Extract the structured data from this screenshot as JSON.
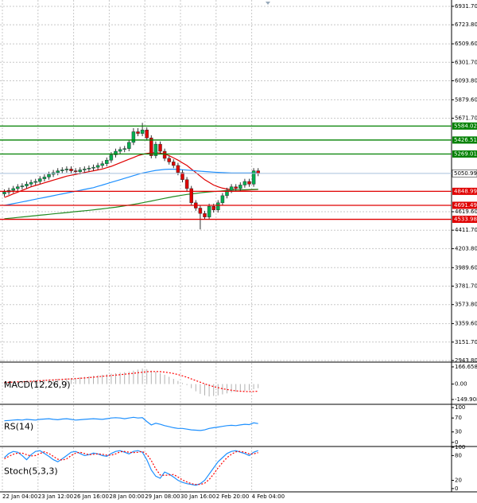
{
  "chart_data": [
    {
      "type": "candlestick",
      "categories": [
        "22 Jan 04:00",
        null,
        null,
        null,
        null,
        null,
        null,
        null,
        "23 Jan 12:00",
        null,
        null,
        null,
        null,
        null,
        null,
        null,
        "26 Jan 16:00",
        null,
        null,
        null,
        null,
        null,
        null,
        null,
        "28 Jan 00:00",
        null,
        null,
        null,
        null,
        null,
        null,
        null,
        "29 Jan 08:00",
        null,
        null,
        null,
        null,
        null,
        null,
        null,
        "30 Jan 16:00",
        null,
        null,
        null,
        null,
        null,
        null,
        null,
        "2 Feb 20:00",
        null,
        null,
        null,
        null,
        null,
        null,
        null,
        "4 Feb 04:00",
        null
      ],
      "open": [
        4820,
        4840,
        4860,
        4880,
        4900,
        4910,
        4930,
        4950,
        4960,
        4990,
        5010,
        5040,
        5060,
        5080,
        5090,
        5100,
        5080,
        5070,
        5090,
        5100,
        5110,
        5120,
        5140,
        5160,
        5200,
        5260,
        5300,
        5320,
        5330,
        5400,
        5520,
        5500,
        5540,
        5450,
        5250,
        5380,
        5300,
        5220,
        5180,
        5140,
        5060,
        4980,
        4880,
        4720,
        4660,
        4600,
        4560,
        4680,
        4640,
        4720,
        4800,
        4860,
        4900,
        4880,
        4920,
        4960,
        4930,
        5080
      ],
      "high": [
        4870,
        4890,
        4910,
        4930,
        4940,
        4960,
        4980,
        4990,
        5020,
        5040,
        5070,
        5090,
        5110,
        5120,
        5130,
        5130,
        5110,
        5120,
        5130,
        5140,
        5150,
        5170,
        5190,
        5230,
        5290,
        5330,
        5350,
        5360,
        5430,
        5560,
        5560,
        5620,
        5570,
        5480,
        5410,
        5410,
        5330,
        5250,
        5210,
        5170,
        5090,
        5010,
        4910,
        4750,
        4690,
        4630,
        4710,
        4710,
        4750,
        4830,
        4890,
        4930,
        4930,
        4950,
        4990,
        4990,
        5110,
        5110
      ],
      "low": [
        4790,
        4810,
        4830,
        4850,
        4870,
        4880,
        4900,
        4920,
        4930,
        4960,
        4980,
        5010,
        5030,
        5050,
        5060,
        5050,
        5040,
        5040,
        5060,
        5070,
        5080,
        5090,
        5110,
        5130,
        5170,
        5230,
        5270,
        5290,
        5300,
        5370,
        5470,
        5470,
        5420,
        5220,
        5220,
        5270,
        5190,
        5150,
        5110,
        5030,
        4950,
        4850,
        4690,
        4630,
        4420,
        4530,
        4530,
        4610,
        4610,
        4690,
        4770,
        4830,
        4850,
        4850,
        4890,
        4900,
        4900,
        5020
      ],
      "close": [
        4840,
        4860,
        4880,
        4900,
        4910,
        4930,
        4950,
        4960,
        4990,
        5010,
        5040,
        5060,
        5080,
        5090,
        5100,
        5080,
        5070,
        5090,
        5100,
        5110,
        5120,
        5140,
        5160,
        5200,
        5260,
        5300,
        5320,
        5330,
        5400,
        5520,
        5500,
        5540,
        5450,
        5250,
        5380,
        5300,
        5220,
        5180,
        5140,
        5060,
        4980,
        4880,
        4720,
        4660,
        4600,
        4560,
        4680,
        4640,
        4720,
        4800,
        4860,
        4900,
        4880,
        4920,
        4960,
        4930,
        5080,
        5051
      ],
      "up_color": "#00b050",
      "down_color": "#e00000",
      "series": [
        {
          "color": "#e00000",
          "values": [
            4780,
            4800,
            4820,
            4840,
            4860,
            4880,
            4900,
            4915,
            4930,
            4945,
            4960,
            4975,
            4990,
            5005,
            5020,
            5030,
            5040,
            5050,
            5060,
            5070,
            5080,
            5090,
            5100,
            5115,
            5130,
            5150,
            5170,
            5190,
            5210,
            5230,
            5250,
            5265,
            5275,
            5283,
            5285,
            5280,
            5270,
            5250,
            5225,
            5200,
            5170,
            5140,
            5100,
            5060,
            5020,
            4980,
            4950,
            4920,
            4900,
            4885,
            4875,
            4870,
            4865,
            4862,
            4862,
            4865,
            4868,
            4870
          ]
        },
        {
          "color": "#1e90ff",
          "values": [
            4690,
            4700,
            4710,
            4720,
            4730,
            4740,
            4750,
            4760,
            4770,
            4780,
            4790,
            4800,
            4810,
            4820,
            4830,
            4840,
            4850,
            4860,
            4870,
            4880,
            4890,
            4905,
            4920,
            4935,
            4950,
            4965,
            4980,
            4995,
            5010,
            5025,
            5040,
            5055,
            5065,
            5075,
            5085,
            5090,
            5095,
            5098,
            5098,
            5095,
            5092,
            5088,
            5084,
            5080,
            5076,
            5072,
            5068,
            5065,
            5062,
            5060,
            5058,
            5056,
            5055,
            5055,
            5055,
            5056,
            5057,
            5058
          ]
        },
        {
          "color": "#228b22",
          "values": [
            4540,
            4545,
            4550,
            4555,
            4560,
            4565,
            4570,
            4575,
            4580,
            4585,
            4590,
            4595,
            4600,
            4605,
            4610,
            4615,
            4620,
            4625,
            4630,
            4635,
            4640,
            4646,
            4652,
            4658,
            4664,
            4670,
            4678,
            4686,
            4694,
            4702,
            4710,
            4720,
            4730,
            4740,
            4750,
            4760,
            4770,
            4780,
            4790,
            4798,
            4806,
            4814,
            4820,
            4826,
            4832,
            4838,
            4842,
            4846,
            4850,
            4854,
            4858,
            4861,
            4864,
            4866,
            4868,
            4869,
            4870,
            4871
          ]
        }
      ],
      "levels": [
        5584.02,
        5426.51,
        5269.01,
        4848.99,
        4691.49,
        4533.98
      ],
      "level_colors": [
        "#008000",
        "#008000",
        "#008000",
        "#e00000",
        "#e00000",
        "#e00000"
      ],
      "last_price": 5050.99,
      "last_price_color": "#a8c0dc",
      "ylim": [
        2926,
        7003
      ],
      "yticks": [
        {
          "value": 6931.7,
          "label": "6931.70"
        },
        {
          "value": 6723.8,
          "label": "6723.80"
        },
        {
          "value": 6509.6,
          "label": "6509.60"
        },
        {
          "value": 6301.7,
          "label": "6301.70"
        },
        {
          "value": 6093.8,
          "label": "6093.80"
        },
        {
          "value": 5879.6,
          "label": "5879.60"
        },
        {
          "value": 5671.7,
          "label": "5671.70"
        },
        {
          "value": 4619.6,
          "label": "4619.60"
        },
        {
          "value": 4411.7,
          "label": "4411.70"
        },
        {
          "value": 4203.8,
          "label": "4203.80"
        },
        {
          "value": 3989.6,
          "label": "3989.60"
        },
        {
          "value": 3781.7,
          "label": "3781.70"
        },
        {
          "value": 3573.8,
          "label": "3573.80"
        },
        {
          "value": 3359.6,
          "label": "3359.60"
        },
        {
          "value": 3151.7,
          "label": "3151.70"
        },
        {
          "value": 2943.8,
          "label": "2943.80"
        }
      ],
      "grid": true
    },
    {
      "type": "macd",
      "title": "MACD(12,26,9)",
      "series": [
        {
          "color": "#b0b0b0",
          "values": [
            20,
            22,
            25,
            28,
            30,
            32,
            35,
            38,
            40,
            42,
            45,
            48,
            50,
            52,
            55,
            58,
            60,
            65,
            70,
            75,
            80,
            85,
            90,
            95,
            100,
            105,
            110,
            115,
            120,
            130,
            140,
            150,
            145,
            130,
            120,
            105,
            90,
            70,
            50,
            30,
            10,
            -10,
            -40,
            -70,
            -95,
            -110,
            -120,
            -115,
            -110,
            -100,
            -90,
            -80,
            -75,
            -70,
            -65,
            -60,
            -50,
            -40
          ]
        },
        {
          "color": "#ff0000",
          "values": [
            15,
            17,
            19,
            21,
            23,
            25,
            27,
            30,
            32,
            35,
            38,
            40,
            43,
            45,
            48,
            50,
            53,
            56,
            59,
            63,
            67,
            71,
            75,
            79,
            83,
            87,
            91,
            95,
            100,
            105,
            110,
            115,
            120,
            122,
            122,
            120,
            116,
            110,
            102,
            92,
            80,
            66,
            50,
            34,
            18,
            2,
            -12,
            -24,
            -35,
            -45,
            -53,
            -60,
            -66,
            -70,
            -72,
            -73,
            -72,
            -70
          ]
        }
      ],
      "ylim": [
        -181,
        205
      ],
      "yticks": [
        {
          "value": 166.658,
          "label": "166.658"
        },
        {
          "value": 0,
          "label": "0.00"
        },
        {
          "value": -149.908,
          "label": "-149.908"
        }
      ]
    },
    {
      "type": "line",
      "title": "RS(14)",
      "series": [
        {
          "color": "#1e90ff",
          "values": [
            62,
            63,
            64,
            65,
            64,
            66,
            65,
            64,
            66,
            67,
            68,
            66,
            65,
            67,
            68,
            66,
            64,
            65,
            66,
            67,
            68,
            67,
            66,
            68,
            70,
            71,
            70,
            68,
            70,
            72,
            70,
            71,
            60,
            50,
            55,
            52,
            48,
            45,
            42,
            40,
            40,
            38,
            36,
            35,
            34,
            36,
            40,
            42,
            44,
            46,
            48,
            49,
            48,
            50,
            52,
            51,
            56,
            54
          ]
        }
      ],
      "ylim": [
        -5,
        107
      ],
      "yticks": [
        100,
        70,
        30,
        0
      ]
    },
    {
      "type": "line",
      "title": "Stoch(5,3,3)",
      "series": [
        {
          "color": "#1e90ff",
          "values": [
            75,
            85,
            90,
            88,
            80,
            70,
            82,
            90,
            92,
            85,
            78,
            70,
            65,
            72,
            80,
            88,
            90,
            85,
            80,
            82,
            86,
            84,
            80,
            78,
            85,
            90,
            92,
            88,
            84,
            90,
            92,
            88,
            70,
            45,
            30,
            25,
            40,
            35,
            28,
            20,
            15,
            12,
            10,
            8,
            12,
            20,
            35,
            50,
            65,
            75,
            85,
            90,
            92,
            88,
            85,
            80,
            88,
            92
          ]
        },
        {
          "color": "#ff0000",
          "style": "dotted",
          "values": [
            72,
            78,
            83,
            86,
            86,
            82,
            79,
            80,
            85,
            89,
            85,
            78,
            71,
            69,
            72,
            80,
            86,
            88,
            85,
            82,
            83,
            84,
            83,
            81,
            81,
            84,
            89,
            90,
            88,
            87,
            88,
            90,
            83,
            68,
            48,
            33,
            32,
            33,
            34,
            28,
            21,
            16,
            12,
            10,
            10,
            13,
            22,
            35,
            50,
            63,
            75,
            83,
            89,
            90,
            88,
            84,
            84,
            87
          ]
        }
      ],
      "ylim": [
        -6,
        100
      ],
      "yticks": [
        100,
        80,
        20,
        0
      ]
    }
  ]
}
